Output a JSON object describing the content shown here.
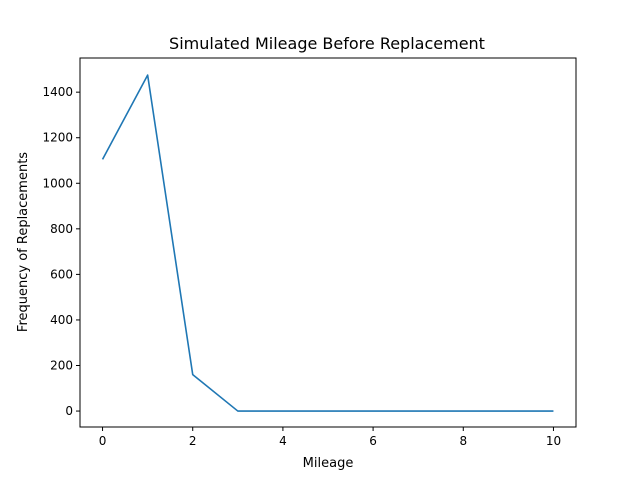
{
  "chart_data": {
    "type": "line",
    "title": "Simulated Mileage Before Replacement",
    "xlabel": "Mileage",
    "ylabel": "Frequency of Replacements",
    "xlim": [
      -0.5,
      10.5
    ],
    "ylim": [
      -70,
      1550
    ],
    "xticks": [
      0,
      2,
      4,
      6,
      8,
      10
    ],
    "yticks": [
      0,
      200,
      400,
      600,
      800,
      1000,
      1200,
      1400
    ],
    "grid": false,
    "legend": "none",
    "series": [
      {
        "color": "#1f77b4",
        "x": [
          0,
          1,
          2,
          3,
          4,
          5,
          6,
          7,
          8,
          9,
          10
        ],
        "y": [
          1105,
          1475,
          160,
          0,
          0,
          0,
          0,
          0,
          0,
          0,
          0
        ]
      }
    ]
  }
}
